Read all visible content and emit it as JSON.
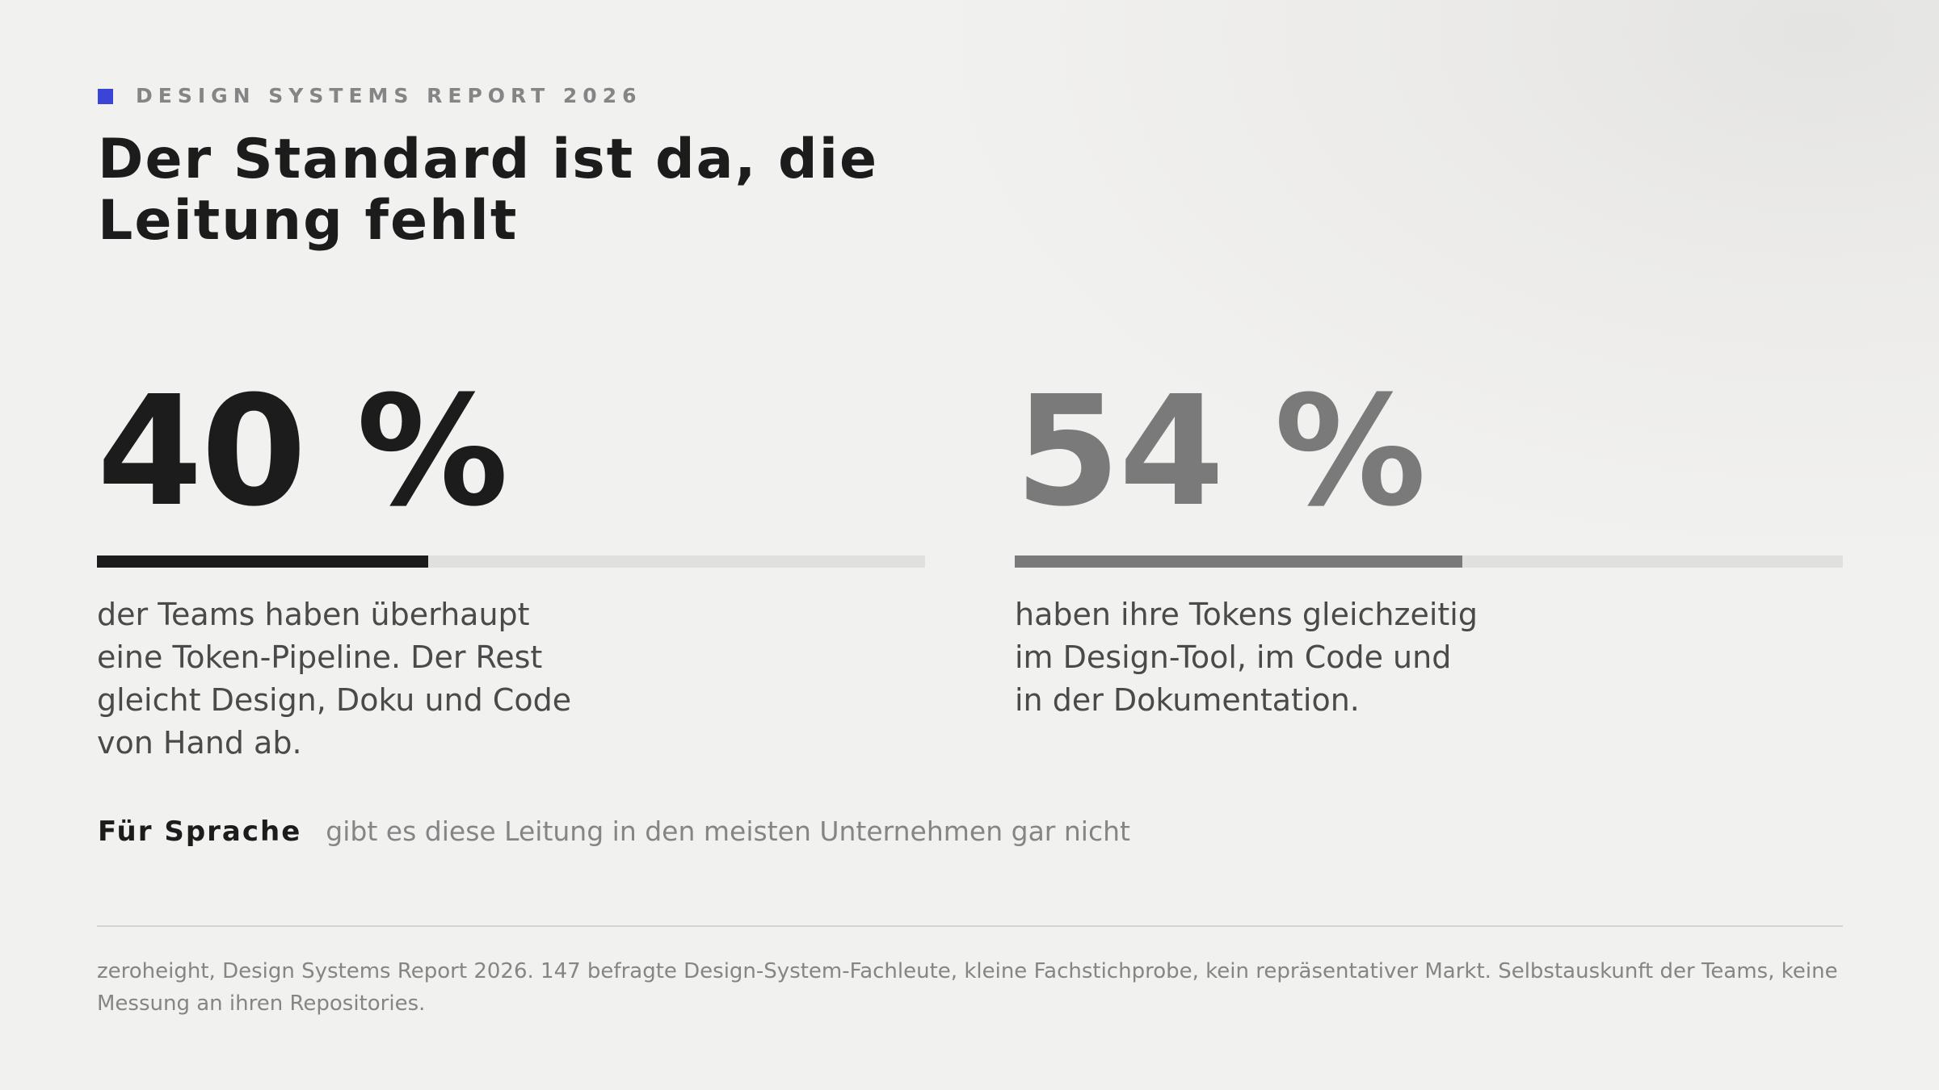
{
  "header": {
    "eyebrow": "DESIGN SYSTEMS REPORT 2026",
    "accent_color": "#3a44d6",
    "title": "Der Standard ist da, die Leitung fehlt"
  },
  "stats": [
    {
      "value": "40 %",
      "percent": 40,
      "description": "der Teams haben überhaupt\neine Token-Pipeline. Der Rest\ngleicht Design, Doku und Code\nvon Hand ab.",
      "color": "#1c1c1c"
    },
    {
      "value": "54 %",
      "percent": 54,
      "description": "haben ihre Tokens gleichzeitig\nim Design-Tool, im Code und\nin der Dokumentation.",
      "color": "#7a7a7a"
    }
  ],
  "note": {
    "label": "Für Sprache",
    "text": "gibt es diese Leitung in den meisten Unternehmen gar nicht"
  },
  "source": "zeroheight, Design Systems Report 2026. 147 befragte Design-System-Fachleute, kleine Fachstichprobe, kein repräsentativer Markt. Selbstauskunft der Teams, keine Messung an ihren Repositories."
}
